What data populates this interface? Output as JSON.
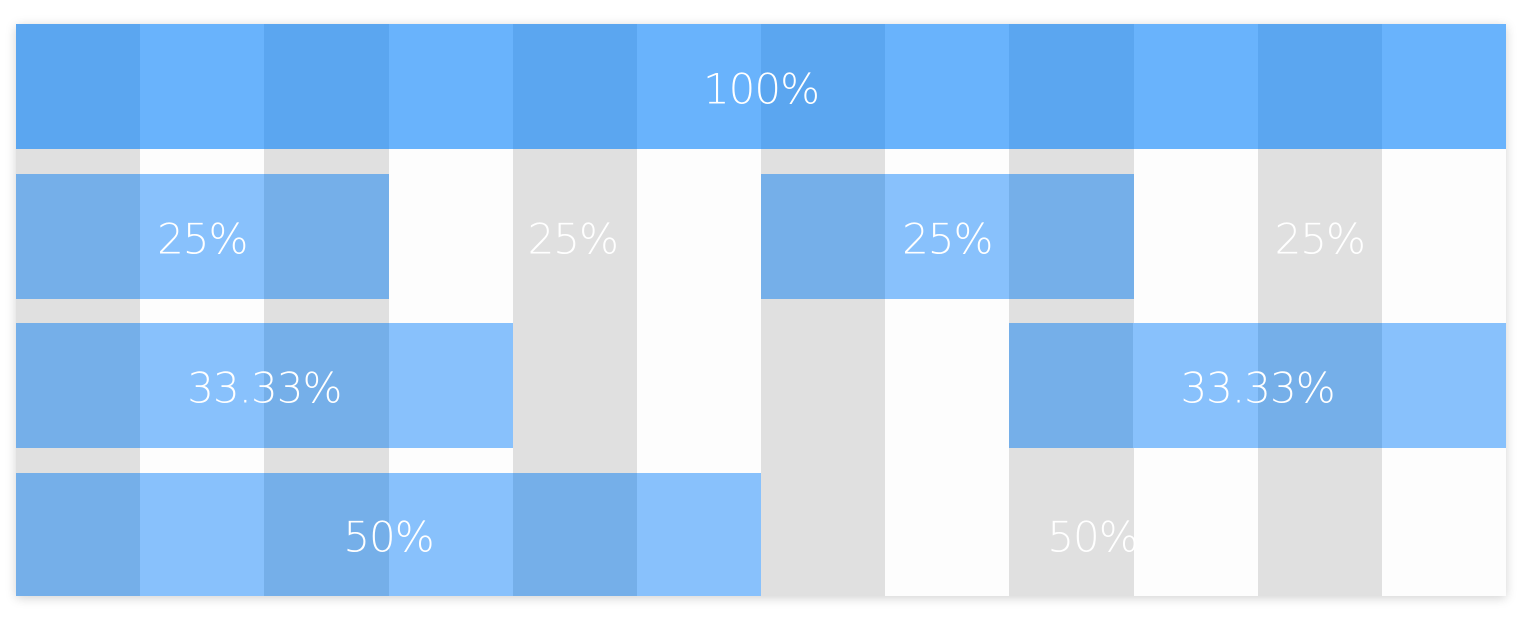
{
  "colors": {
    "grey_column": "#e0e0e0",
    "white_column": "#fdfdfd",
    "row1_dark": "#5ba6f0",
    "row1_light": "#69b3fc",
    "block_dark": "#75afe9",
    "block_light": "#88c1fc"
  },
  "rows": [
    {
      "blocks": [
        {
          "label": "100%",
          "fraction": 1
        }
      ]
    },
    {
      "blocks": [
        {
          "label": "25%",
          "fraction": 0.25,
          "filled": true
        },
        {
          "label": "25%",
          "fraction": 0.25,
          "filled": false
        },
        {
          "label": "25%",
          "fraction": 0.25,
          "filled": true
        },
        {
          "label": "25%",
          "fraction": 0.25,
          "filled": false
        }
      ]
    },
    {
      "blocks": [
        {
          "label": "33.33%",
          "fraction": 0.3333,
          "filled": true
        },
        {
          "label": "",
          "fraction": 0.3333,
          "filled": false
        },
        {
          "label": "33.33%",
          "fraction": 0.3333,
          "filled": true
        }
      ]
    },
    {
      "blocks": [
        {
          "label": "50%",
          "fraction": 0.5,
          "filled": true
        },
        {
          "label": "50%",
          "fraction": 0.5,
          "filled": false
        }
      ]
    }
  ]
}
